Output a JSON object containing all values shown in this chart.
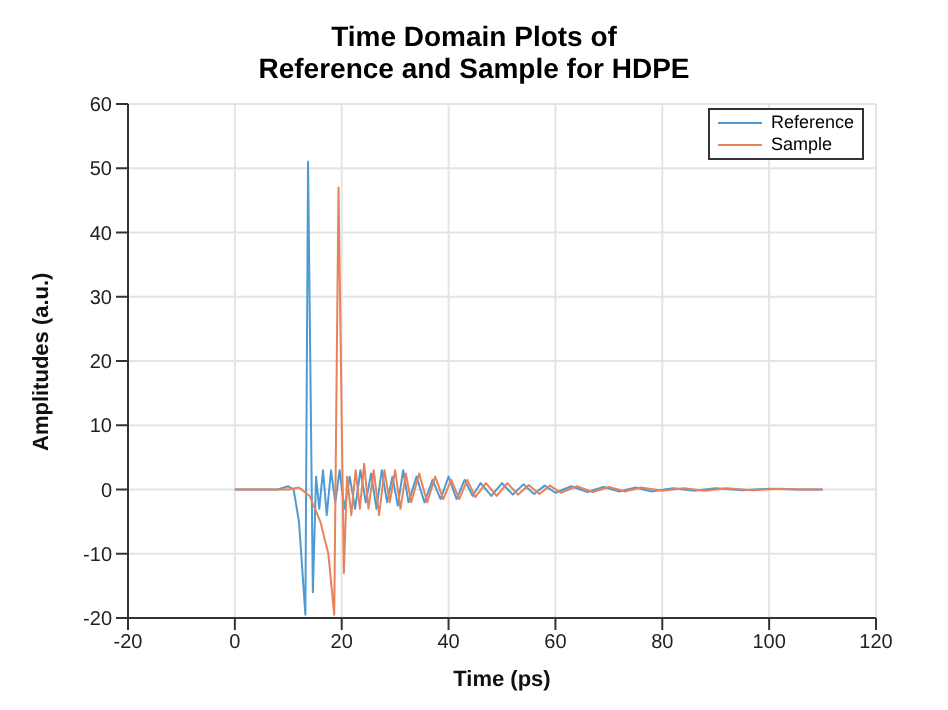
{
  "chart_data": {
    "type": "line",
    "title": "Time Domain Plots of\nReference and Sample for HDPE",
    "xlabel": "Time (ps)",
    "ylabel": "Amplitudes (a.u.)",
    "xlim": [
      -20,
      120
    ],
    "xticks": [
      -20,
      0,
      20,
      40,
      60,
      80,
      100,
      120
    ],
    "ylim": [
      -20,
      60
    ],
    "yticks": [
      -20,
      -10,
      0,
      10,
      20,
      30,
      40,
      50,
      60
    ],
    "grid": true,
    "legend": "top right",
    "marker": "none",
    "line_style": "solid",
    "series": [
      {
        "name": "Reference",
        "color": "#4d9bd3",
        "x": [
          0,
          8,
          10,
          11,
          12,
          13.2,
          13.7,
          14.6,
          15.2,
          15.8,
          16.5,
          17.2,
          18,
          18.8,
          19.6,
          20.5,
          21.5,
          22.5,
          23.5,
          24.5,
          25.5,
          26.5,
          27.5,
          28.5,
          29.5,
          30.5,
          31.5,
          32.5,
          34,
          35.5,
          37,
          38.5,
          40,
          41.5,
          43,
          44.5,
          46,
          48,
          50,
          52,
          54,
          56,
          58,
          60,
          63,
          66,
          69,
          72,
          75,
          78,
          82,
          86,
          90,
          95,
          100,
          105,
          110
        ],
        "values": [
          0,
          0,
          0.5,
          0,
          -5,
          -19.5,
          51,
          -16,
          2,
          -3,
          3,
          -4,
          3,
          -2,
          3,
          -3,
          2,
          -3,
          3,
          -2,
          2.5,
          -3,
          3,
          -2,
          2,
          -2.5,
          3,
          -2,
          2,
          -2,
          1.5,
          -1.5,
          2,
          -1.5,
          1.5,
          -1,
          1,
          -1,
          1,
          -0.8,
          0.8,
          -0.7,
          0.6,
          -0.5,
          0.5,
          -0.4,
          0.4,
          -0.3,
          0.3,
          -0.3,
          0.2,
          -0.2,
          0.2,
          -0.1,
          0.1,
          0,
          0
        ]
      },
      {
        "name": "Sample",
        "color": "#e8825a",
        "x": [
          0,
          10,
          12,
          14,
          16,
          17.5,
          18.6,
          19.4,
          20.4,
          21,
          21.8,
          22.6,
          23.4,
          24.2,
          25,
          26,
          27,
          28,
          29,
          30,
          31,
          32,
          33,
          34.5,
          36,
          37.5,
          39,
          40.5,
          42,
          43.5,
          45,
          47,
          49,
          51,
          53,
          55,
          57,
          59,
          61,
          64,
          67,
          70,
          73,
          76,
          80,
          84,
          88,
          92,
          97,
          102,
          106,
          110
        ],
        "values": [
          0,
          0,
          0.3,
          -1,
          -5,
          -10,
          -19.5,
          47,
          -13,
          2,
          -4,
          3,
          -3,
          4,
          -3,
          3,
          -4,
          3,
          -2,
          3,
          -3,
          2.5,
          -2,
          2.5,
          -2,
          2,
          -1.5,
          1.5,
          -1.5,
          1.5,
          -1.2,
          1,
          -1,
          1,
          -0.8,
          0.7,
          -0.7,
          0.6,
          -0.5,
          0.5,
          -0.4,
          0.4,
          -0.3,
          0.3,
          -0.2,
          0.2,
          -0.2,
          0.2,
          -0.1,
          0.1,
          0,
          0
        ]
      }
    ]
  }
}
